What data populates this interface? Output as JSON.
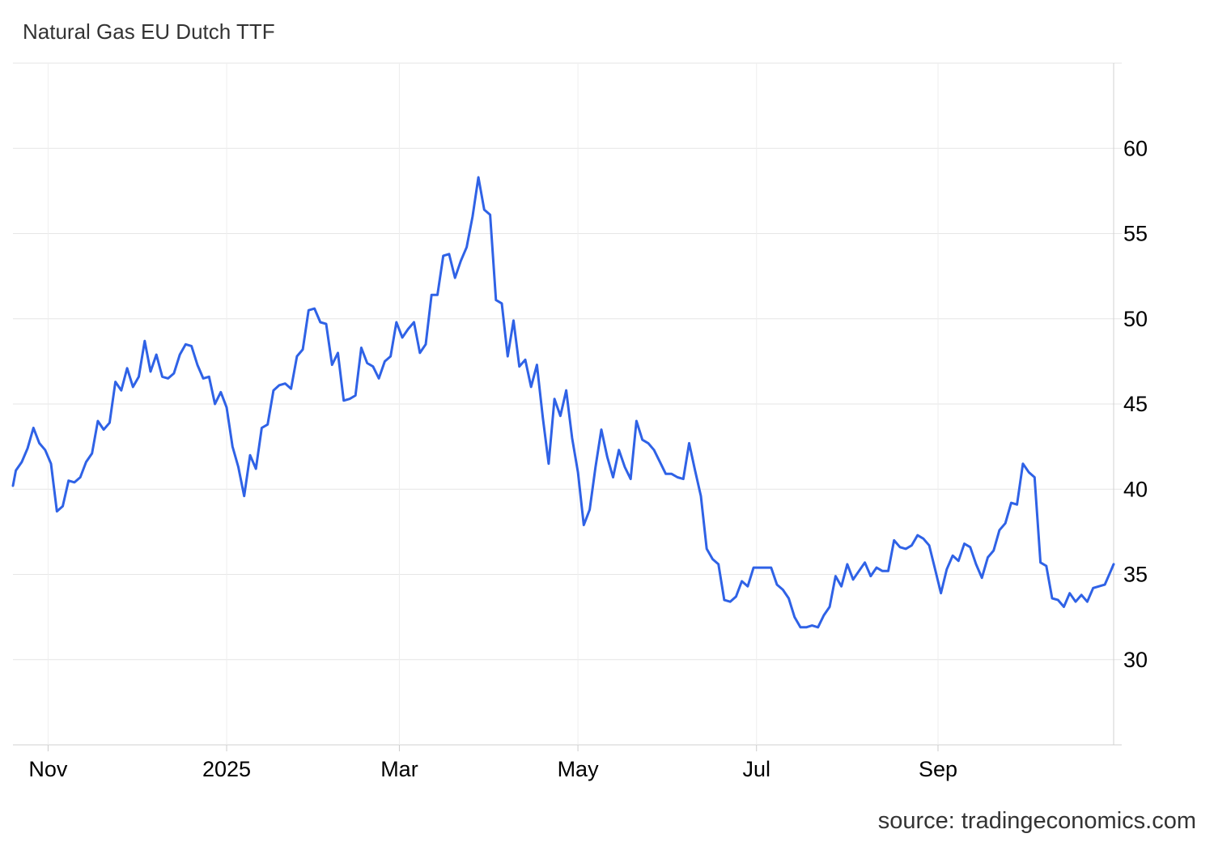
{
  "title": "Natural Gas EU Dutch TTF",
  "source": "source: tradingeconomics.com",
  "chart_data": {
    "type": "line",
    "title": "Natural Gas EU Dutch TTF",
    "xlabel": "",
    "ylabel": "",
    "ylim": [
      25,
      65
    ],
    "y_ticks": [
      30,
      35,
      40,
      45,
      50,
      55,
      60
    ],
    "x_ticks": [
      {
        "label": "Nov",
        "date": "2024-11-01"
      },
      {
        "label": "2025",
        "date": "2025-01-01"
      },
      {
        "label": "Mar",
        "date": "2025-03-01"
      },
      {
        "label": "May",
        "date": "2025-05-01"
      },
      {
        "label": "Jul",
        "date": "2025-07-01"
      },
      {
        "label": "Sep",
        "date": "2025-09-01"
      }
    ],
    "x_range": [
      "2024-10-20",
      "2025-10-31"
    ],
    "grid": true,
    "line_color": "#2f62e6",
    "series": [
      {
        "values": [
          [
            "2024-10-20",
            40.2
          ],
          [
            "2024-10-21",
            41.1
          ],
          [
            "2024-10-23",
            41.6
          ],
          [
            "2024-10-25",
            42.4
          ],
          [
            "2024-10-27",
            43.6
          ],
          [
            "2024-10-29",
            42.7
          ],
          [
            "2024-10-31",
            42.3
          ],
          [
            "2024-11-02",
            41.5
          ],
          [
            "2024-11-04",
            38.7
          ],
          [
            "2024-11-06",
            39.0
          ],
          [
            "2024-11-08",
            40.5
          ],
          [
            "2024-11-10",
            40.4
          ],
          [
            "2024-11-12",
            40.7
          ],
          [
            "2024-11-14",
            41.6
          ],
          [
            "2024-11-16",
            42.1
          ],
          [
            "2024-11-18",
            44.0
          ],
          [
            "2024-11-20",
            43.5
          ],
          [
            "2024-11-22",
            43.9
          ],
          [
            "2024-11-24",
            46.3
          ],
          [
            "2024-11-26",
            45.8
          ],
          [
            "2024-11-28",
            47.1
          ],
          [
            "2024-11-30",
            46.0
          ],
          [
            "2024-12-02",
            46.6
          ],
          [
            "2024-12-04",
            48.7
          ],
          [
            "2024-12-06",
            46.9
          ],
          [
            "2024-12-08",
            47.9
          ],
          [
            "2024-12-10",
            46.6
          ],
          [
            "2024-12-12",
            46.5
          ],
          [
            "2024-12-14",
            46.8
          ],
          [
            "2024-12-16",
            47.9
          ],
          [
            "2024-12-18",
            48.5
          ],
          [
            "2024-12-20",
            48.4
          ],
          [
            "2024-12-22",
            47.3
          ],
          [
            "2024-12-24",
            46.5
          ],
          [
            "2024-12-26",
            46.6
          ],
          [
            "2024-12-28",
            45.0
          ],
          [
            "2024-12-30",
            45.7
          ],
          [
            "2025-01-01",
            44.8
          ],
          [
            "2025-01-03",
            42.5
          ],
          [
            "2025-01-05",
            41.3
          ],
          [
            "2025-01-07",
            39.6
          ],
          [
            "2025-01-09",
            42.0
          ],
          [
            "2025-01-11",
            41.2
          ],
          [
            "2025-01-13",
            43.6
          ],
          [
            "2025-01-15",
            43.8
          ],
          [
            "2025-01-17",
            45.8
          ],
          [
            "2025-01-19",
            46.1
          ],
          [
            "2025-01-21",
            46.2
          ],
          [
            "2025-01-23",
            45.9
          ],
          [
            "2025-01-25",
            47.8
          ],
          [
            "2025-01-27",
            48.2
          ],
          [
            "2025-01-29",
            50.5
          ],
          [
            "2025-01-31",
            50.6
          ],
          [
            "2025-02-02",
            49.8
          ],
          [
            "2025-02-04",
            49.7
          ],
          [
            "2025-02-06",
            47.3
          ],
          [
            "2025-02-08",
            48.0
          ],
          [
            "2025-02-10",
            45.2
          ],
          [
            "2025-02-12",
            45.3
          ],
          [
            "2025-02-14",
            45.5
          ],
          [
            "2025-02-16",
            48.3
          ],
          [
            "2025-02-18",
            47.4
          ],
          [
            "2025-02-20",
            47.2
          ],
          [
            "2025-02-22",
            46.5
          ],
          [
            "2025-02-24",
            47.5
          ],
          [
            "2025-02-26",
            47.8
          ],
          [
            "2025-02-28",
            49.8
          ],
          [
            "2025-03-02",
            48.9
          ],
          [
            "2025-03-04",
            49.4
          ],
          [
            "2025-03-06",
            49.8
          ],
          [
            "2025-03-08",
            48.0
          ],
          [
            "2025-03-10",
            48.5
          ],
          [
            "2025-03-12",
            51.4
          ],
          [
            "2025-03-14",
            51.4
          ],
          [
            "2025-03-16",
            53.7
          ],
          [
            "2025-03-18",
            53.8
          ],
          [
            "2025-03-20",
            52.4
          ],
          [
            "2025-03-22",
            53.4
          ],
          [
            "2025-03-24",
            54.2
          ],
          [
            "2025-03-26",
            56.0
          ],
          [
            "2025-03-28",
            58.3
          ],
          [
            "2025-03-30",
            56.4
          ],
          [
            "2025-04-01",
            56.1
          ],
          [
            "2025-04-03",
            51.1
          ],
          [
            "2025-04-05",
            50.9
          ],
          [
            "2025-04-07",
            47.8
          ],
          [
            "2025-04-09",
            49.9
          ],
          [
            "2025-04-11",
            47.2
          ],
          [
            "2025-04-13",
            47.6
          ],
          [
            "2025-04-15",
            46.0
          ],
          [
            "2025-04-17",
            47.3
          ],
          [
            "2025-04-19",
            44.2
          ],
          [
            "2025-04-21",
            41.5
          ],
          [
            "2025-04-23",
            45.3
          ],
          [
            "2025-04-25",
            44.3
          ],
          [
            "2025-04-27",
            45.8
          ],
          [
            "2025-04-29",
            43.0
          ],
          [
            "2025-05-01",
            41.0
          ],
          [
            "2025-05-03",
            37.9
          ],
          [
            "2025-05-05",
            38.8
          ],
          [
            "2025-05-07",
            41.3
          ],
          [
            "2025-05-09",
            43.5
          ],
          [
            "2025-05-11",
            41.9
          ],
          [
            "2025-05-13",
            40.7
          ],
          [
            "2025-05-15",
            42.3
          ],
          [
            "2025-05-17",
            41.3
          ],
          [
            "2025-05-19",
            40.6
          ],
          [
            "2025-05-21",
            44.0
          ],
          [
            "2025-05-23",
            42.9
          ],
          [
            "2025-05-25",
            42.7
          ],
          [
            "2025-05-27",
            42.3
          ],
          [
            "2025-05-29",
            41.6
          ],
          [
            "2025-05-31",
            40.9
          ],
          [
            "2025-06-02",
            40.9
          ],
          [
            "2025-06-04",
            40.7
          ],
          [
            "2025-06-06",
            40.6
          ],
          [
            "2025-06-08",
            42.7
          ],
          [
            "2025-06-10",
            41.1
          ],
          [
            "2025-06-12",
            39.6
          ],
          [
            "2025-06-14",
            36.5
          ],
          [
            "2025-06-16",
            35.9
          ],
          [
            "2025-06-18",
            35.6
          ],
          [
            "2025-06-20",
            33.5
          ],
          [
            "2025-06-22",
            33.4
          ],
          [
            "2025-06-24",
            33.7
          ],
          [
            "2025-06-26",
            34.6
          ],
          [
            "2025-06-28",
            34.3
          ],
          [
            "2025-06-30",
            35.4
          ],
          [
            "2025-07-02",
            35.4
          ],
          [
            "2025-07-04",
            35.4
          ],
          [
            "2025-07-06",
            35.4
          ],
          [
            "2025-07-08",
            34.4
          ],
          [
            "2025-07-10",
            34.1
          ],
          [
            "2025-07-12",
            33.6
          ],
          [
            "2025-07-14",
            32.5
          ],
          [
            "2025-07-16",
            31.9
          ],
          [
            "2025-07-18",
            31.9
          ],
          [
            "2025-07-20",
            32.0
          ],
          [
            "2025-07-22",
            31.9
          ],
          [
            "2025-07-24",
            32.6
          ],
          [
            "2025-07-26",
            33.1
          ],
          [
            "2025-07-28",
            34.9
          ],
          [
            "2025-07-30",
            34.3
          ],
          [
            "2025-08-01",
            35.6
          ],
          [
            "2025-08-03",
            34.7
          ],
          [
            "2025-08-05",
            35.2
          ],
          [
            "2025-08-07",
            35.7
          ],
          [
            "2025-08-09",
            34.9
          ],
          [
            "2025-08-11",
            35.4
          ],
          [
            "2025-08-13",
            35.2
          ],
          [
            "2025-08-15",
            35.2
          ],
          [
            "2025-08-17",
            37.0
          ],
          [
            "2025-08-19",
            36.6
          ],
          [
            "2025-08-21",
            36.5
          ],
          [
            "2025-08-23",
            36.7
          ],
          [
            "2025-08-25",
            37.3
          ],
          [
            "2025-08-27",
            37.1
          ],
          [
            "2025-08-29",
            36.7
          ],
          [
            "2025-08-31",
            35.3
          ],
          [
            "2025-09-02",
            33.9
          ],
          [
            "2025-09-04",
            35.3
          ],
          [
            "2025-09-06",
            36.1
          ],
          [
            "2025-09-08",
            35.8
          ],
          [
            "2025-09-10",
            36.8
          ],
          [
            "2025-09-12",
            36.6
          ],
          [
            "2025-09-14",
            35.6
          ],
          [
            "2025-09-16",
            34.8
          ],
          [
            "2025-09-18",
            36.0
          ],
          [
            "2025-09-20",
            36.4
          ],
          [
            "2025-09-22",
            37.6
          ],
          [
            "2025-09-24",
            38.0
          ],
          [
            "2025-09-26",
            39.2
          ],
          [
            "2025-09-28",
            39.1
          ],
          [
            "2025-09-30",
            41.5
          ],
          [
            "2025-10-02",
            41.0
          ],
          [
            "2025-10-04",
            40.7
          ],
          [
            "2025-10-06",
            35.7
          ],
          [
            "2025-10-08",
            35.5
          ],
          [
            "2025-10-10",
            33.6
          ],
          [
            "2025-10-12",
            33.5
          ],
          [
            "2025-10-14",
            33.1
          ],
          [
            "2025-10-16",
            33.9
          ],
          [
            "2025-10-18",
            33.4
          ],
          [
            "2025-10-20",
            33.8
          ],
          [
            "2025-10-22",
            33.4
          ],
          [
            "2025-10-24",
            34.2
          ],
          [
            "2025-10-26",
            34.3
          ],
          [
            "2025-10-28",
            34.4
          ],
          [
            "2025-10-30",
            35.2
          ],
          [
            "2025-10-31",
            35.6
          ]
        ]
      }
    ]
  }
}
